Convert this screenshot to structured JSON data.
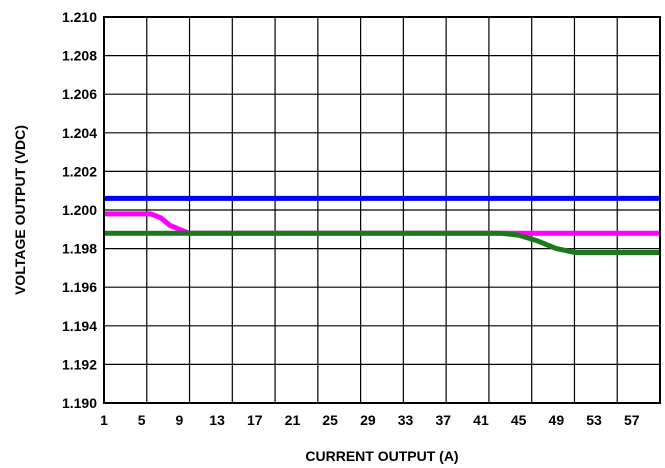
{
  "chart_data": {
    "type": "line",
    "xlabel": "CURRENT OUTPUT (A)",
    "ylabel": "VOLTAGE OUTPUT (VDC)",
    "title": "",
    "xlim": [
      1,
      60
    ],
    "ylim": [
      1.19,
      1.21
    ],
    "grid": true,
    "x_ticks": [
      1,
      5,
      9,
      13,
      17,
      21,
      25,
      29,
      33,
      37,
      41,
      45,
      49,
      53,
      57
    ],
    "x_tick_labels": [
      "1",
      "5",
      "9",
      "13",
      "17",
      "21",
      "25",
      "29",
      "33",
      "37",
      "41",
      "45",
      "49",
      "53",
      "57"
    ],
    "y_ticks": [
      1.19,
      1.192,
      1.194,
      1.196,
      1.198,
      1.2,
      1.202,
      1.204,
      1.206,
      1.208,
      1.21
    ],
    "y_tick_labels": [
      "1.190",
      "1.192",
      "1.194",
      "1.196",
      "1.198",
      "1.200",
      "1.202",
      "1.204",
      "1.206",
      "1.208",
      "1.210"
    ],
    "series": [
      {
        "color": "#0000ff",
        "x": [
          1,
          60
        ],
        "y": [
          1.2006,
          1.2006
        ]
      },
      {
        "color": "#ff00ff",
        "x": [
          1,
          6,
          7,
          8,
          9,
          10,
          12,
          60
        ],
        "y": [
          1.1998,
          1.1998,
          1.1996,
          1.1992,
          1.199,
          1.1988,
          1.1988,
          1.1988
        ]
      },
      {
        "color": "#1a7a1a",
        "x": [
          1,
          43,
          45,
          47,
          49,
          51,
          60
        ],
        "y": [
          1.1988,
          1.1988,
          1.1987,
          1.1984,
          1.198,
          1.1978,
          1.1978
        ]
      }
    ]
  }
}
